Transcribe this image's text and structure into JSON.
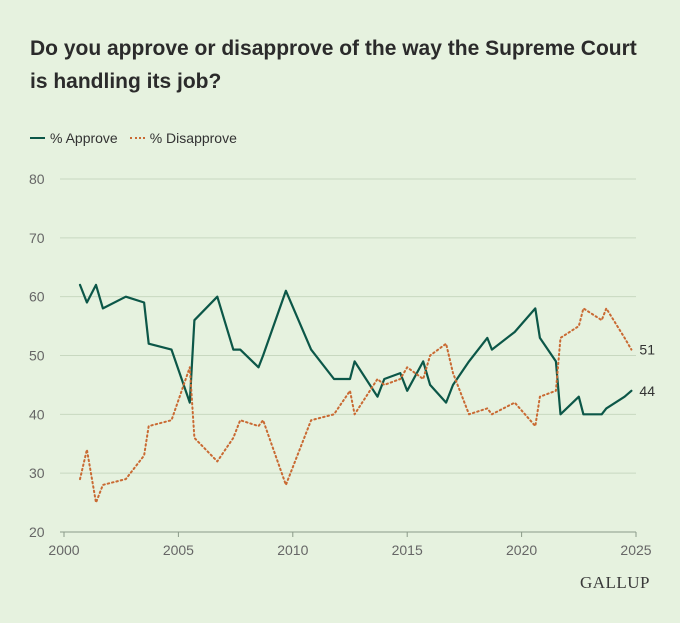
{
  "title": "Do you approve or disapprove of the way the Supreme Court is handling its job?",
  "legend": {
    "approve_label": "% Approve",
    "disapprove_label": "% Disapprove"
  },
  "logo": "GALLUP",
  "colors": {
    "approve": "#0c5748",
    "disapprove": "#c96a33",
    "grid": "#c8d8c0",
    "background": "#e6f2df"
  },
  "chart_data": {
    "type": "line",
    "title": "Do you approve or disapprove of the way the Supreme Court is handling its job?",
    "xlabel": "",
    "ylabel": "",
    "xlim": [
      2000,
      2025
    ],
    "ylim": [
      20,
      80
    ],
    "x_ticks": [
      2000,
      2005,
      2010,
      2015,
      2020,
      2025
    ],
    "y_ticks": [
      20,
      30,
      40,
      50,
      60,
      70,
      80
    ],
    "grid": true,
    "legend_position": "top-left",
    "end_labels": {
      "approve": "44",
      "disapprove": "51"
    },
    "series": [
      {
        "name": "% Approve",
        "style": "solid",
        "points": [
          [
            2000.7,
            62
          ],
          [
            2001.0,
            59
          ],
          [
            2001.4,
            62
          ],
          [
            2001.7,
            58
          ],
          [
            2002.7,
            60
          ],
          [
            2003.5,
            59
          ],
          [
            2003.7,
            52
          ],
          [
            2004.7,
            51
          ],
          [
            2005.5,
            42
          ],
          [
            2005.7,
            56
          ],
          [
            2006.7,
            60
          ],
          [
            2007.4,
            51
          ],
          [
            2007.7,
            51
          ],
          [
            2008.5,
            48
          ],
          [
            2008.7,
            50
          ],
          [
            2009.7,
            61
          ],
          [
            2010.8,
            51
          ],
          [
            2011.8,
            46
          ],
          [
            2012.5,
            46
          ],
          [
            2012.7,
            49
          ],
          [
            2013.7,
            43
          ],
          [
            2014.0,
            46
          ],
          [
            2014.7,
            47
          ],
          [
            2015.0,
            44
          ],
          [
            2015.7,
            49
          ],
          [
            2016.0,
            45
          ],
          [
            2016.7,
            42
          ],
          [
            2017.0,
            45
          ],
          [
            2017.7,
            49
          ],
          [
            2018.5,
            53
          ],
          [
            2018.7,
            51
          ],
          [
            2019.7,
            54
          ],
          [
            2020.6,
            58
          ],
          [
            2020.8,
            53
          ],
          [
            2021.5,
            49
          ],
          [
            2021.7,
            40
          ],
          [
            2022.5,
            43
          ],
          [
            2022.7,
            40
          ],
          [
            2023.5,
            40
          ],
          [
            2023.7,
            41
          ],
          [
            2024.5,
            43
          ],
          [
            2024.8,
            44
          ]
        ]
      },
      {
        "name": "% Disapprove",
        "style": "dotted",
        "points": [
          [
            2000.7,
            29
          ],
          [
            2001.0,
            34
          ],
          [
            2001.4,
            25
          ],
          [
            2001.7,
            28
          ],
          [
            2002.7,
            29
          ],
          [
            2003.5,
            33
          ],
          [
            2003.7,
            38
          ],
          [
            2004.7,
            39
          ],
          [
            2005.5,
            48
          ],
          [
            2005.7,
            36
          ],
          [
            2006.7,
            32
          ],
          [
            2007.4,
            36
          ],
          [
            2007.7,
            39
          ],
          [
            2008.5,
            38
          ],
          [
            2008.7,
            39
          ],
          [
            2009.7,
            28
          ],
          [
            2010.8,
            39
          ],
          [
            2011.8,
            40
          ],
          [
            2012.5,
            44
          ],
          [
            2012.7,
            40
          ],
          [
            2013.7,
            46
          ],
          [
            2014.0,
            45
          ],
          [
            2014.7,
            46
          ],
          [
            2015.0,
            48
          ],
          [
            2015.7,
            46
          ],
          [
            2016.0,
            50
          ],
          [
            2016.7,
            52
          ],
          [
            2017.0,
            47
          ],
          [
            2017.7,
            40
          ],
          [
            2018.5,
            41
          ],
          [
            2018.7,
            40
          ],
          [
            2019.7,
            42
          ],
          [
            2020.6,
            38
          ],
          [
            2020.8,
            43
          ],
          [
            2021.5,
            44
          ],
          [
            2021.7,
            53
          ],
          [
            2022.5,
            55
          ],
          [
            2022.7,
            58
          ],
          [
            2023.5,
            56
          ],
          [
            2023.7,
            58
          ],
          [
            2024.5,
            53
          ],
          [
            2024.8,
            51
          ]
        ]
      }
    ]
  }
}
